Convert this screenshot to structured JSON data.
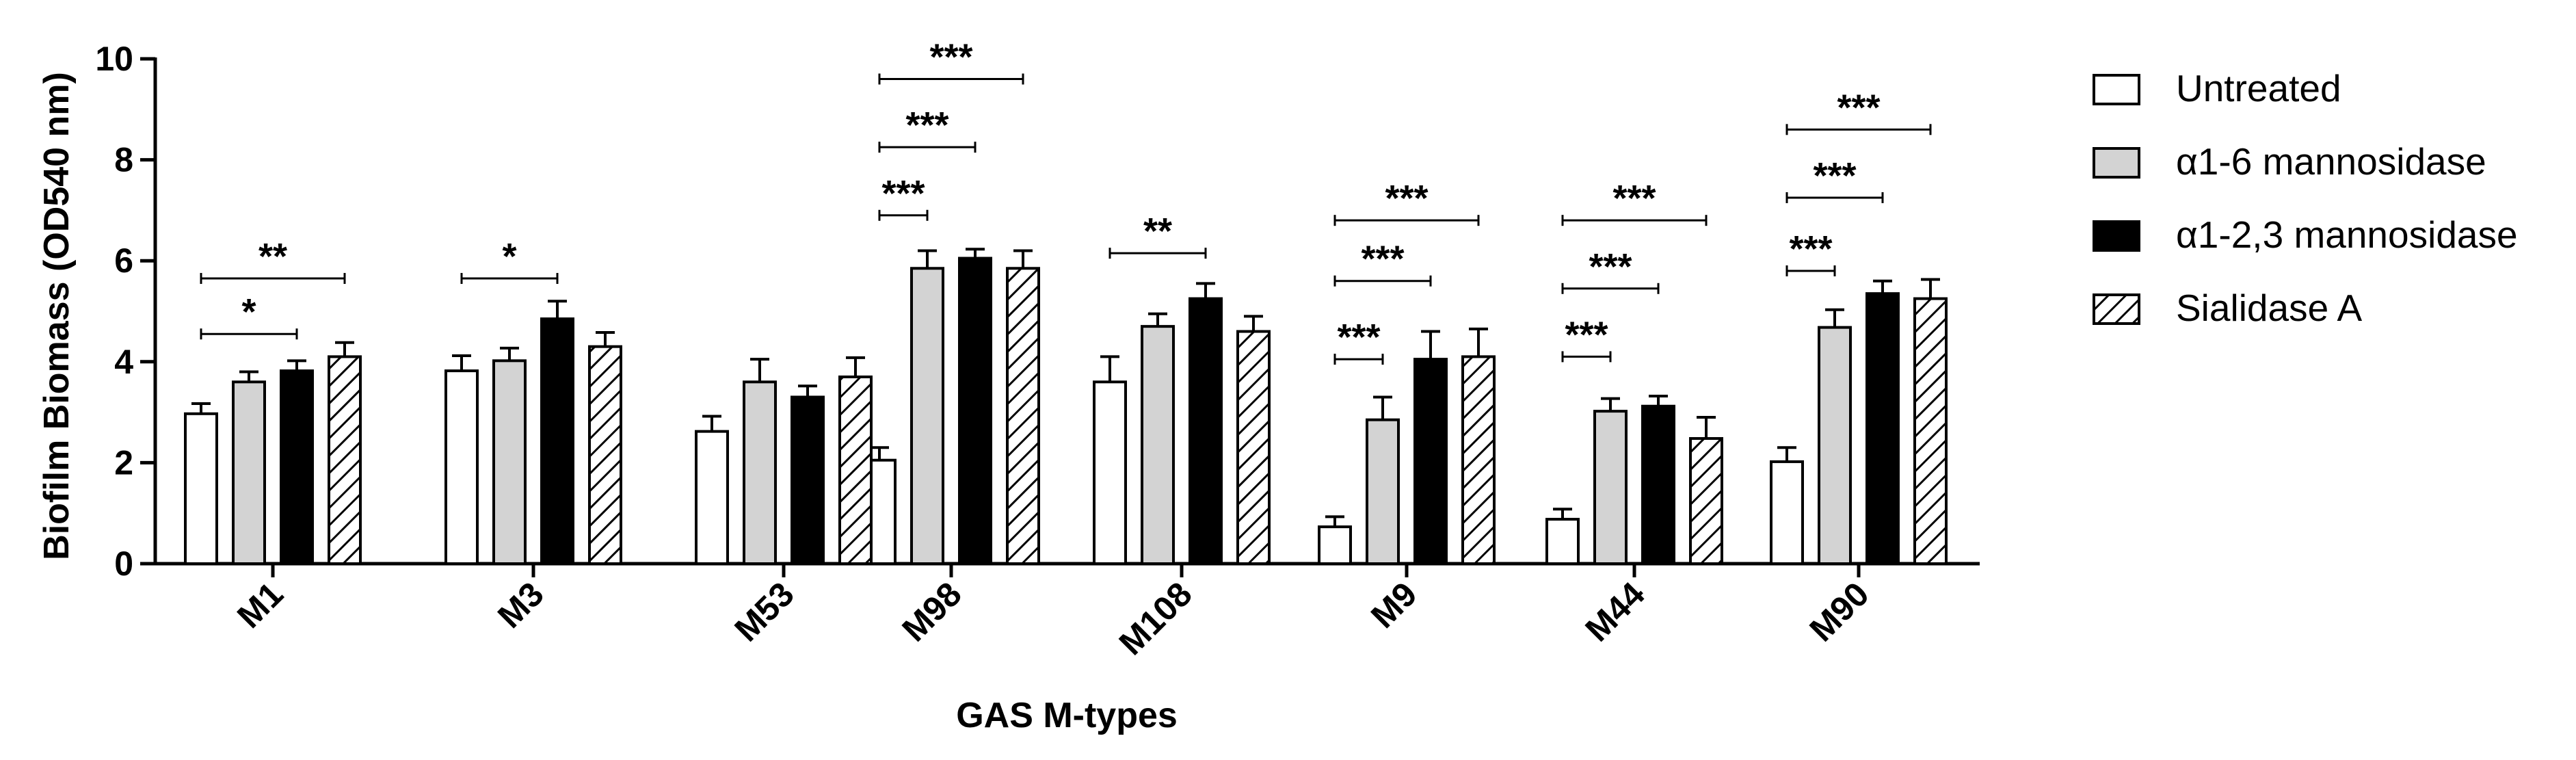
{
  "chart_data": {
    "type": "bar",
    "xlabel": "GAS M-types",
    "ylabel": "Biofilm  Biomass (OD540 nm)",
    "ylim": [
      0,
      10
    ],
    "yticks": [
      "0",
      "2",
      "4",
      "6",
      "8",
      "10"
    ],
    "grid": false,
    "legend_position": "right",
    "categories": [
      "M1",
      "M3",
      "M53",
      "M98",
      "M108",
      "M9",
      "M44",
      "M90"
    ],
    "series": [
      {
        "name": "Untreated",
        "pattern": "white",
        "values": [
          2.97,
          3.82,
          2.62,
          2.05,
          3.6,
          0.73,
          0.88,
          2.02
        ],
        "errors": [
          0.2,
          0.3,
          0.3,
          0.25,
          0.5,
          0.2,
          0.2,
          0.28
        ]
      },
      {
        "name": "α1-6 mannosidase",
        "pattern": "grey",
        "values": [
          3.6,
          4.02,
          3.6,
          5.85,
          4.7,
          2.85,
          3.02,
          4.68
        ],
        "errors": [
          0.2,
          0.25,
          0.45,
          0.35,
          0.25,
          0.45,
          0.25,
          0.35
        ]
      },
      {
        "name": "α1-2,3 mannosidase",
        "pattern": "black",
        "values": [
          3.82,
          4.85,
          3.3,
          6.05,
          5.25,
          4.05,
          3.12,
          5.35
        ],
        "errors": [
          0.2,
          0.35,
          0.22,
          0.18,
          0.3,
          0.55,
          0.2,
          0.25
        ]
      },
      {
        "name": "Sialidase A",
        "pattern": "hatched",
        "values": [
          4.1,
          4.3,
          3.7,
          5.85,
          4.6,
          4.1,
          2.48,
          5.25
        ],
        "errors": [
          0.28,
          0.28,
          0.38,
          0.35,
          0.3,
          0.55,
          0.42,
          0.38
        ]
      }
    ],
    "significance": [
      {
        "category": "M1",
        "from": "Untreated",
        "to": "α1-2,3 mannosidase",
        "label": "*",
        "y": 4.55
      },
      {
        "category": "M1",
        "from": "Untreated",
        "to": "Sialidase A",
        "label": "**",
        "y": 5.65
      },
      {
        "category": "M3",
        "from": "Untreated",
        "to": "α1-2,3 mannosidase",
        "label": "*",
        "y": 5.65
      },
      {
        "category": "M98",
        "from": "Untreated",
        "to": "α1-6 mannosidase",
        "label": "***",
        "y": 6.9
      },
      {
        "category": "M98",
        "from": "Untreated",
        "to": "α1-2,3 mannosidase",
        "label": "***",
        "y": 8.25
      },
      {
        "category": "M98",
        "from": "Untreated",
        "to": "Sialidase A",
        "label": "***",
        "y": 9.6
      },
      {
        "category": "M108",
        "from": "Untreated",
        "to": "α1-2,3 mannosidase",
        "label": "**",
        "y": 6.15
      },
      {
        "category": "M9",
        "from": "Untreated",
        "to": "α1-6 mannosidase",
        "label": "***",
        "y": 4.05
      },
      {
        "category": "M9",
        "from": "Untreated",
        "to": "α1-2,3 mannosidase",
        "label": "***",
        "y": 5.6
      },
      {
        "category": "M9",
        "from": "Untreated",
        "to": "Sialidase A",
        "label": "***",
        "y": 6.8
      },
      {
        "category": "M44",
        "from": "Untreated",
        "to": "α1-6 mannosidase",
        "label": "***",
        "y": 4.1
      },
      {
        "category": "M44",
        "from": "Untreated",
        "to": "α1-2,3 mannosidase",
        "label": "***",
        "y": 5.45
      },
      {
        "category": "M44",
        "from": "Untreated",
        "to": "Sialidase A",
        "label": "***",
        "y": 6.8
      },
      {
        "category": "M90",
        "from": "Untreated",
        "to": "α1-6 mannosidase",
        "label": "***",
        "y": 5.8
      },
      {
        "category": "M90",
        "from": "Untreated",
        "to": "α1-2,3 mannosidase",
        "label": "***",
        "y": 7.25
      },
      {
        "category": "M90",
        "from": "Untreated",
        "to": "Sialidase A",
        "label": "***",
        "y": 8.6
      }
    ]
  }
}
